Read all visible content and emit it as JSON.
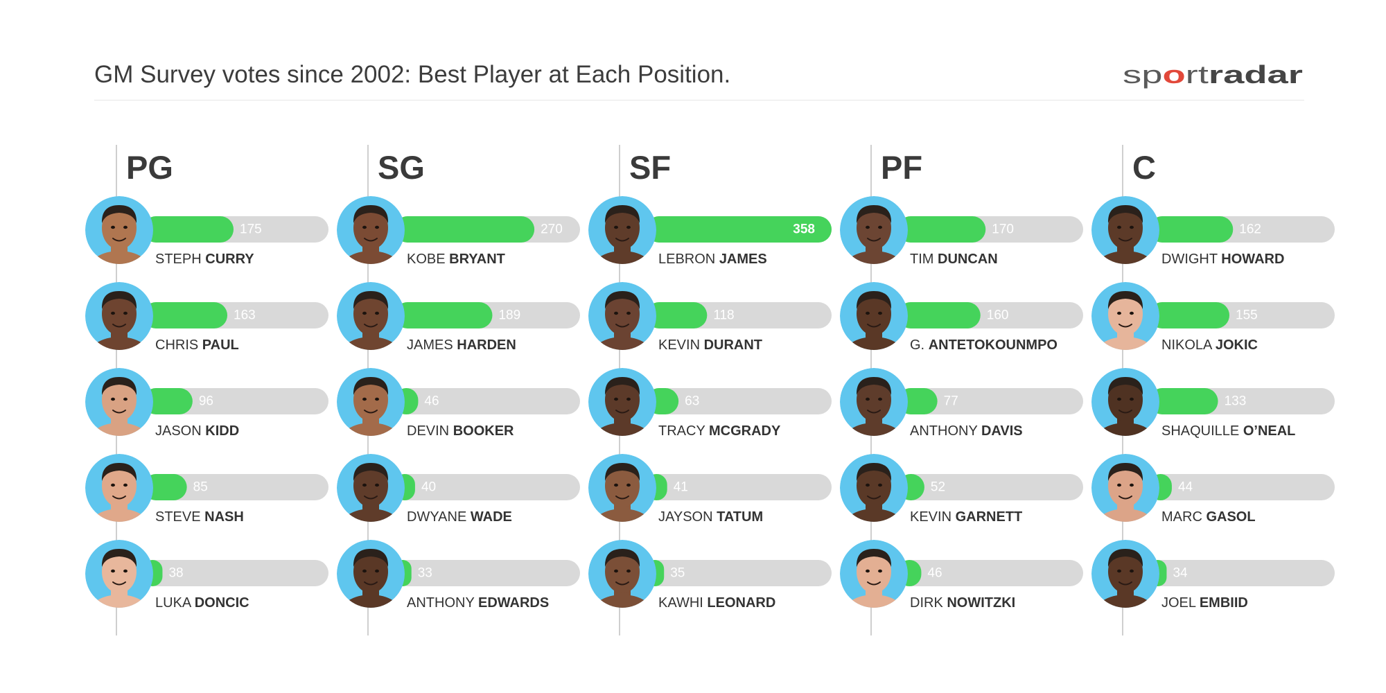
{
  "title": "GM Survey votes since 2002: Best Player at Each Position.",
  "logo": {
    "segments": [
      "sp",
      "o",
      "rt",
      "radar"
    ],
    "accent": "#e2483a"
  },
  "colors": {
    "bar": "#45d35b",
    "track": "#d9d9d9",
    "value_label": "#ffffff",
    "avatar_background": "#5fc6ee",
    "divider": "#cfcfcf"
  },
  "chart_data": [
    {
      "type": "bar",
      "orientation": "horizontal",
      "title": "PG",
      "xlim": [
        0,
        358
      ],
      "categories": [
        {
          "first": "STEPH",
          "last": "CURRY"
        },
        {
          "first": "CHRIS",
          "last": "PAUL"
        },
        {
          "first": "JASON",
          "last": "KIDD"
        },
        {
          "first": "STEVE",
          "last": "NASH"
        },
        {
          "first": "LUKA",
          "last": "DONCIC"
        }
      ],
      "values": [
        175,
        163,
        96,
        85,
        38
      ],
      "avatar_tones": [
        "#b07650",
        "#6e4430",
        "#d9a283",
        "#e0a88a",
        "#e8b79c"
      ]
    },
    {
      "type": "bar",
      "orientation": "horizontal",
      "title": "SG",
      "xlim": [
        0,
        358
      ],
      "categories": [
        {
          "first": "KOBE",
          "last": "BRYANT"
        },
        {
          "first": "JAMES",
          "last": "HARDEN"
        },
        {
          "first": "DEVIN",
          "last": "BOOKER"
        },
        {
          "first": "DWYANE",
          "last": "WADE"
        },
        {
          "first": "ANTHONY",
          "last": "EDWARDS"
        }
      ],
      "values": [
        270,
        189,
        46,
        40,
        33
      ],
      "avatar_tones": [
        "#7b4b34",
        "#6f4530",
        "#a36b4a",
        "#5f3c2a",
        "#5a3826"
      ]
    },
    {
      "type": "bar",
      "orientation": "horizontal",
      "title": "SF",
      "xlim": [
        0,
        358
      ],
      "categories": [
        {
          "first": "LEBRON",
          "last": "JAMES"
        },
        {
          "first": "KEVIN",
          "last": "DURANT"
        },
        {
          "first": "TRACY",
          "last": "MCGRADY"
        },
        {
          "first": "JAYSON",
          "last": "TATUM"
        },
        {
          "first": "KAWHI",
          "last": "LEONARD"
        }
      ],
      "values": [
        358,
        118,
        63,
        41,
        35
      ],
      "avatar_tones": [
        "#5f3c2a",
        "#6b4332",
        "#5c3a29",
        "#8b5b3f",
        "#7b4f37"
      ]
    },
    {
      "type": "bar",
      "orientation": "horizontal",
      "title": "PF",
      "xlim": [
        0,
        358
      ],
      "categories": [
        {
          "first": "TIM",
          "last": "DUNCAN"
        },
        {
          "first": "G.",
          "last": "ANTETOKOUNMPO"
        },
        {
          "first": "ANTHONY",
          "last": "DAVIS"
        },
        {
          "first": "KEVIN",
          "last": "GARNETT"
        },
        {
          "first": "DIRK",
          "last": "NOWITZKI"
        }
      ],
      "values": [
        170,
        160,
        77,
        52,
        46
      ],
      "avatar_tones": [
        "#6c4533",
        "#5a3826",
        "#5e3c2b",
        "#5a3927",
        "#e3af93"
      ]
    },
    {
      "type": "bar",
      "orientation": "horizontal",
      "title": "C",
      "xlim": [
        0,
        358
      ],
      "categories": [
        {
          "first": "DWIGHT",
          "last": "HOWARD"
        },
        {
          "first": "NIKOLA",
          "last": "JOKIC"
        },
        {
          "first": "SHAQUILLE",
          "last": "O’NEAL"
        },
        {
          "first": "MARC",
          "last": "GASOL"
        },
        {
          "first": "JOEL",
          "last": "EMBIID"
        }
      ],
      "values": [
        162,
        155,
        133,
        44,
        34
      ],
      "avatar_tones": [
        "#5c3a28",
        "#e6b59b",
        "#4f3222",
        "#dca488",
        "#5a3826"
      ]
    }
  ]
}
